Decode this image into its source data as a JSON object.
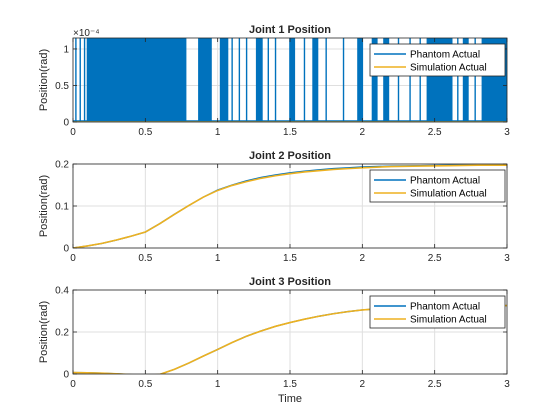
{
  "colors": {
    "phantom": "#0072BD",
    "simulation": "#EDB120",
    "grid": "#dfdfdf",
    "axis": "#262626"
  },
  "chart_data": [
    {
      "type": "line",
      "title": "Joint 1 Position",
      "xlabel": "",
      "ylabel": "Position(rad)",
      "xlim": [
        0,
        3
      ],
      "ylim": [
        0,
        0.000115
      ],
      "xticks": [
        "0",
        "0.5",
        "1",
        "1.5",
        "2",
        "2.5",
        "3"
      ],
      "yticks": [
        {
          "value": 0,
          "label": "0"
        },
        {
          "value": 5e-05,
          "label": "0.5"
        },
        {
          "value": 0.0001,
          "label": "1"
        }
      ],
      "y_exponent": "×10⁻⁴",
      "grid": true,
      "legend_location": "top-right",
      "series": [
        {
          "name": "Phantom Actual",
          "style": "rapid-toggle",
          "level": 0.000115,
          "bursts": [
            [
              0.1,
              0.78
            ],
            [
              0.87,
              0.96
            ],
            [
              1.02,
              1.07
            ],
            [
              1.27,
              1.31
            ],
            [
              1.5,
              1.53
            ],
            [
              1.66,
              1.69
            ],
            [
              1.97,
              2.0
            ],
            [
              2.07,
              2.1
            ],
            [
              2.15,
              2.18
            ],
            [
              2.45,
              2.62
            ],
            [
              2.7,
              2.73
            ],
            [
              2.83,
              3.0
            ]
          ],
          "isolated_spikes": [
            0.02,
            0.05,
            0.08,
            1.1,
            1.15,
            1.2,
            1.35,
            1.4,
            1.6,
            1.75,
            1.87,
            2.25,
            2.33,
            2.4,
            2.66,
            2.78
          ]
        },
        {
          "name": "Simulation Actual",
          "x": [
            0,
            3
          ],
          "values": [
            0,
            0
          ]
        }
      ]
    },
    {
      "type": "line",
      "title": "Joint 2 Position",
      "xlabel": "",
      "ylabel": "Position(rad)",
      "xlim": [
        0,
        3
      ],
      "ylim": [
        0,
        0.2
      ],
      "xticks": [
        "0",
        "0.5",
        "1",
        "1.5",
        "2",
        "2.5",
        "3"
      ],
      "yticks": [
        {
          "value": 0,
          "label": "0"
        },
        {
          "value": 0.1,
          "label": "0.1"
        },
        {
          "value": 0.2,
          "label": "0.2"
        }
      ],
      "grid": true,
      "legend_location": "top-right",
      "series": [
        {
          "name": "Phantom Actual",
          "x": [
            0,
            0.1,
            0.2,
            0.3,
            0.4,
            0.5,
            0.6,
            0.7,
            0.8,
            0.9,
            1.0,
            1.1,
            1.2,
            1.3,
            1.4,
            1.5,
            1.6,
            1.7,
            1.8,
            1.9,
            2.0,
            2.2,
            2.4,
            2.6,
            2.8,
            3.0
          ],
          "values": [
            0,
            0.005,
            0.011,
            0.019,
            0.028,
            0.038,
            0.058,
            0.08,
            0.101,
            0.121,
            0.138,
            0.15,
            0.16,
            0.168,
            0.174,
            0.179,
            0.183,
            0.186,
            0.189,
            0.191,
            0.193,
            0.195,
            0.196,
            0.197,
            0.197,
            0.198
          ]
        },
        {
          "name": "Simulation Actual",
          "x": [
            0,
            0.1,
            0.2,
            0.3,
            0.4,
            0.5,
            0.6,
            0.7,
            0.8,
            0.9,
            1.0,
            1.1,
            1.2,
            1.3,
            1.4,
            1.5,
            1.6,
            1.7,
            1.8,
            1.9,
            2.0,
            2.2,
            2.4,
            2.6,
            2.8,
            3.0
          ],
          "values": [
            0,
            0.005,
            0.011,
            0.019,
            0.028,
            0.038,
            0.058,
            0.08,
            0.101,
            0.121,
            0.137,
            0.149,
            0.158,
            0.166,
            0.172,
            0.177,
            0.181,
            0.184,
            0.187,
            0.189,
            0.191,
            0.194,
            0.195,
            0.196,
            0.197,
            0.197
          ]
        }
      ]
    },
    {
      "type": "line",
      "title": "Joint 3 Position",
      "xlabel": "Time",
      "ylabel": "Position(rad)",
      "xlim": [
        0,
        3
      ],
      "ylim": [
        0,
        0.4
      ],
      "xticks": [
        "0",
        "0.5",
        "1",
        "1.5",
        "2",
        "2.5",
        "3"
      ],
      "yticks": [
        {
          "value": 0,
          "label": "0"
        },
        {
          "value": 0.2,
          "label": "0.2"
        },
        {
          "value": 0.4,
          "label": "0.4"
        }
      ],
      "grid": true,
      "legend_location": "top-right",
      "series": [
        {
          "name": "Phantom Actual",
          "x": [
            0,
            0.1,
            0.2,
            0.3,
            0.4,
            0.5,
            0.6,
            0.7,
            0.8,
            0.9,
            1.0,
            1.1,
            1.2,
            1.3,
            1.4,
            1.5,
            1.6,
            1.7,
            1.8,
            1.9,
            2.0,
            2.2,
            2.4,
            2.6,
            2.8,
            3.0
          ],
          "values": [
            0.007,
            0.006,
            0.004,
            0.001,
            -0.003,
            -0.007,
            -0.002,
            0.022,
            0.052,
            0.085,
            0.117,
            0.15,
            0.18,
            0.205,
            0.227,
            0.245,
            0.261,
            0.275,
            0.287,
            0.297,
            0.305,
            0.315,
            0.32,
            0.323,
            0.325,
            0.326
          ]
        },
        {
          "name": "Simulation Actual",
          "x": [
            0,
            0.1,
            0.2,
            0.3,
            0.4,
            0.5,
            0.6,
            0.7,
            0.8,
            0.9,
            1.0,
            1.1,
            1.2,
            1.3,
            1.4,
            1.5,
            1.6,
            1.7,
            1.8,
            1.9,
            2.0,
            2.2,
            2.4,
            2.6,
            2.8,
            3.0
          ],
          "values": [
            0.007,
            0.006,
            0.004,
            0.001,
            -0.003,
            -0.007,
            -0.002,
            0.022,
            0.052,
            0.085,
            0.117,
            0.15,
            0.18,
            0.205,
            0.227,
            0.245,
            0.261,
            0.275,
            0.287,
            0.297,
            0.305,
            0.315,
            0.32,
            0.323,
            0.325,
            0.326
          ]
        }
      ]
    }
  ]
}
